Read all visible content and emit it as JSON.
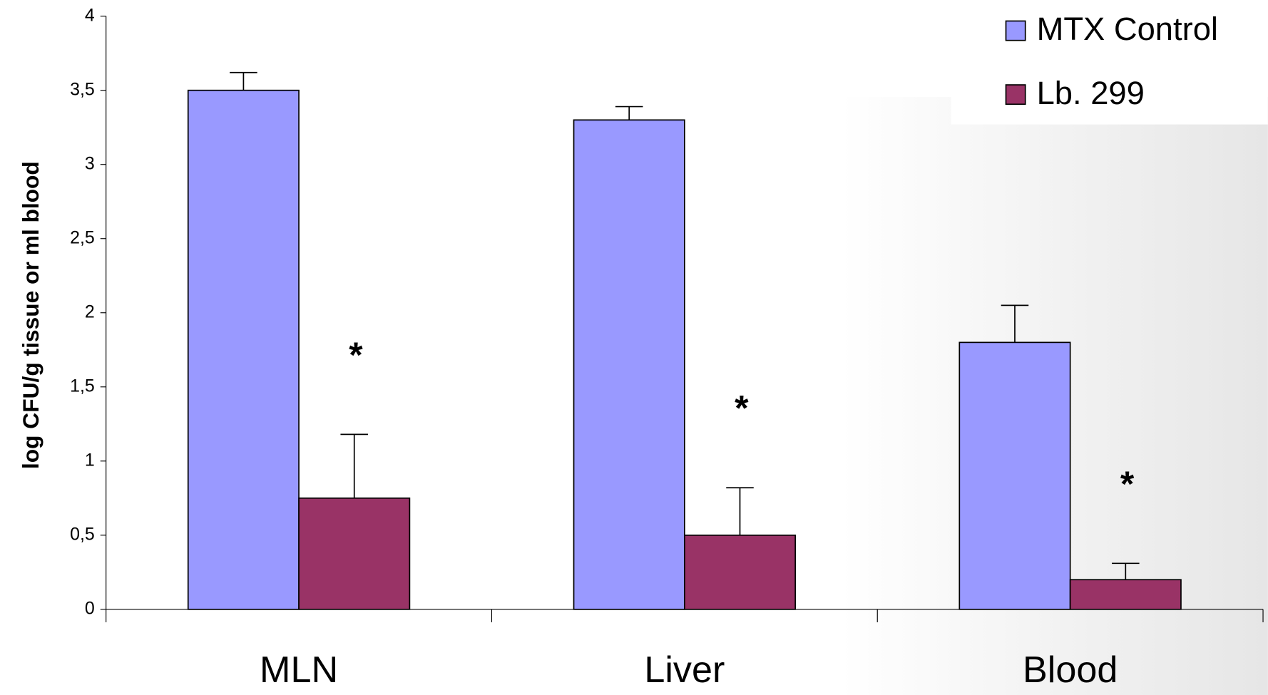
{
  "chart_data": {
    "type": "bar",
    "y_label": "log CFU/g tissue or ml blood",
    "categories": [
      "MLN",
      "Liver",
      "Blood"
    ],
    "series": [
      {
        "name": "MTX Control",
        "color": "#9999ff",
        "values": [
          3.5,
          3.3,
          1.8
        ],
        "errors": [
          0.12,
          0.09,
          0.25
        ]
      },
      {
        "name": "Lb. 299",
        "color": "#993366",
        "values": [
          0.75,
          0.5,
          0.2
        ],
        "errors": [
          0.43,
          0.32,
          0.11
        ]
      }
    ],
    "annotations": [
      "*",
      "*",
      "*"
    ],
    "ylim": [
      0,
      4
    ],
    "yticks": [
      0,
      {
        "value": 0.5,
        "label": "0,5"
      },
      1,
      {
        "value": 1.5,
        "label": "1,5"
      },
      2,
      {
        "value": 2.5,
        "label": "2,5"
      },
      3,
      {
        "value": 3.5,
        "label": "3,5"
      },
      4
    ],
    "grid": false,
    "legend": "top-right"
  }
}
